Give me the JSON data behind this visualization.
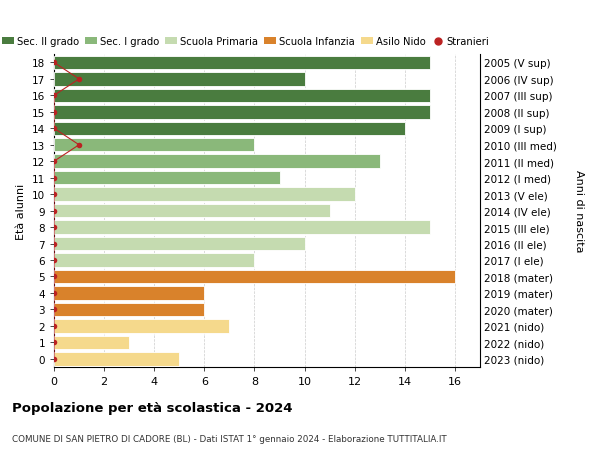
{
  "ages": [
    18,
    17,
    16,
    15,
    14,
    13,
    12,
    11,
    10,
    9,
    8,
    7,
    6,
    5,
    4,
    3,
    2,
    1,
    0
  ],
  "right_labels": [
    "2005 (V sup)",
    "2006 (IV sup)",
    "2007 (III sup)",
    "2008 (II sup)",
    "2009 (I sup)",
    "2010 (III med)",
    "2011 (II med)",
    "2012 (I med)",
    "2013 (V ele)",
    "2014 (IV ele)",
    "2015 (III ele)",
    "2016 (II ele)",
    "2017 (I ele)",
    "2018 (mater)",
    "2019 (mater)",
    "2020 (mater)",
    "2021 (nido)",
    "2022 (nido)",
    "2023 (nido)"
  ],
  "bar_values": [
    15,
    10,
    15,
    15,
    14,
    8,
    13,
    9,
    12,
    11,
    15,
    10,
    8,
    16,
    6,
    6,
    7,
    3,
    5
  ],
  "bar_colors": [
    "#4a7c3f",
    "#4a7c3f",
    "#4a7c3f",
    "#4a7c3f",
    "#4a7c3f",
    "#8ab87a",
    "#8ab87a",
    "#8ab87a",
    "#c5dbb0",
    "#c5dbb0",
    "#c5dbb0",
    "#c5dbb0",
    "#c5dbb0",
    "#d9822b",
    "#d9822b",
    "#d9822b",
    "#f5d98c",
    "#f5d98c",
    "#f5d98c"
  ],
  "stranieri_x": [
    0,
    1,
    0,
    0,
    0,
    1,
    0,
    0,
    0,
    0,
    0,
    0,
    0,
    0,
    0,
    0,
    0,
    0,
    0
  ],
  "title_bold": "Popolazione per età scolastica - 2024",
  "subtitle": "COMUNE DI SAN PIETRO DI CADORE (BL) - Dati ISTAT 1° gennaio 2024 - Elaborazione TUTTITALIA.IT",
  "ylabel_left": "Età alunni",
  "ylabel_right": "Anni di nascita",
  "legend_entries": [
    {
      "label": "Sec. II grado",
      "color": "#4a7c3f",
      "type": "patch"
    },
    {
      "label": "Sec. I grado",
      "color": "#8ab87a",
      "type": "patch"
    },
    {
      "label": "Scuola Primaria",
      "color": "#c5dbb0",
      "type": "patch"
    },
    {
      "label": "Scuola Infanzia",
      "color": "#d9822b",
      "type": "patch"
    },
    {
      "label": "Asilo Nido",
      "color": "#f5d98c",
      "type": "patch"
    },
    {
      "label": "Stranieri",
      "color": "#bb2222",
      "type": "dot"
    }
  ],
  "bg_color": "#ffffff",
  "grid_color": "#cccccc",
  "xlim": [
    0,
    17
  ],
  "xticks": [
    0,
    2,
    4,
    6,
    8,
    10,
    12,
    14,
    16
  ],
  "stranieri_dot_color": "#bb2222",
  "stranieri_line_color": "#bb2222"
}
